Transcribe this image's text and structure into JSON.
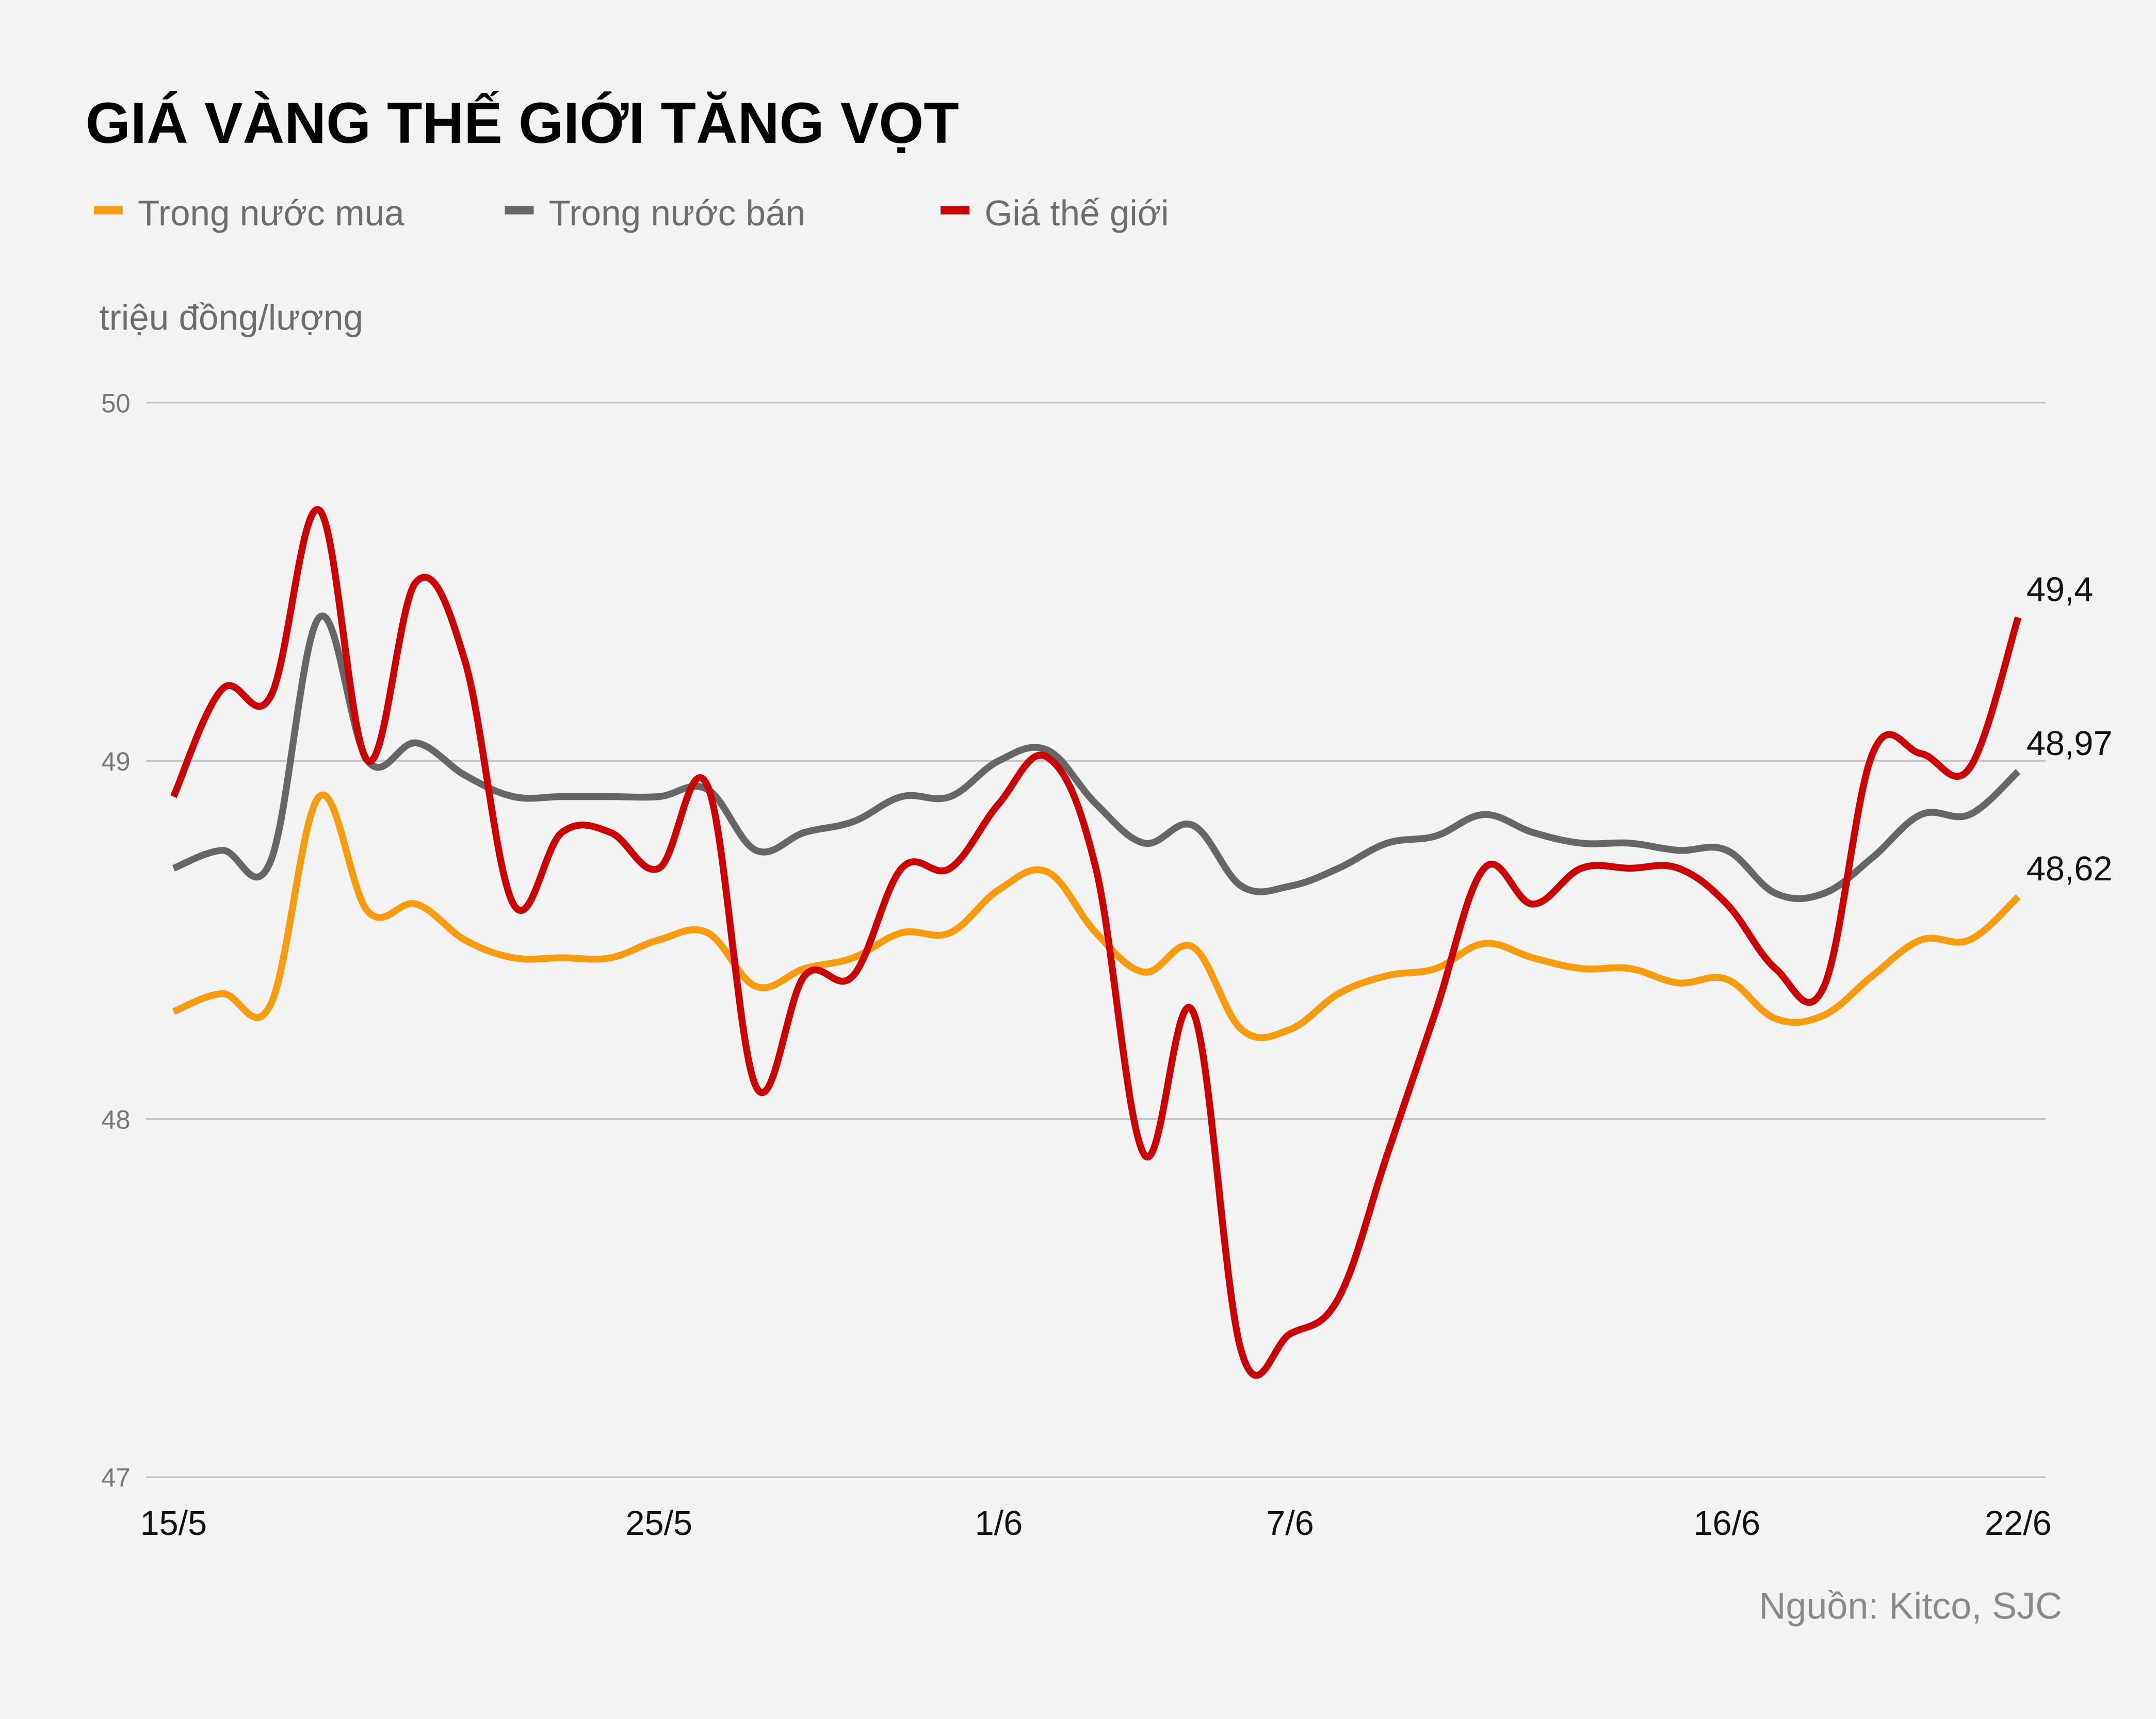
{
  "chart_data": {
    "type": "line",
    "title": "GIÁ VÀNG THẾ GIỚI TĂNG VỌT",
    "ylabel": "triệu đồng/lượng",
    "xlabel": "",
    "source": "Nguồn: Kitco, SJC",
    "ylim": [
      47,
      50
    ],
    "yticks": [
      "47",
      "48",
      "49",
      "50"
    ],
    "grid": true,
    "legend": "top-left",
    "x": [
      "15/5",
      "16/5",
      "17/5",
      "18/5",
      "19/5",
      "20/5",
      "21/5",
      "22/5",
      "23/5",
      "24/5",
      "25/5",
      "26/5",
      "27/5",
      "28/5",
      "29/5",
      "30/5",
      "31/5",
      "1/6",
      "2/6",
      "3/6",
      "4/6",
      "5/6",
      "6/6",
      "7/6",
      "8/6",
      "9/6",
      "10/6",
      "11/6",
      "12/6",
      "13/6",
      "14/6",
      "15/6",
      "16/6",
      "17/6",
      "18/6",
      "19/6",
      "20/6",
      "21/6",
      "22/6"
    ],
    "xticks": [
      "15/5",
      "25/5",
      "1/6",
      "7/6",
      "16/6",
      "22/6"
    ],
    "series": [
      {
        "name": "Trong nước mua",
        "color": "#f89c0e",
        "end_label": "48,62",
        "values": [
          48.3,
          48.35,
          48.32,
          48.9,
          48.58,
          48.6,
          48.5,
          48.45,
          48.45,
          48.45,
          48.5,
          48.52,
          48.37,
          48.42,
          48.45,
          48.52,
          48.52,
          48.64,
          48.69,
          48.52,
          48.41,
          48.48,
          48.25,
          48.25,
          48.35,
          48.4,
          48.42,
          48.49,
          48.45,
          48.42,
          48.42,
          48.38,
          48.39,
          48.28,
          48.29,
          48.4,
          48.5,
          48.5,
          48.62
        ]
      },
      {
        "name": "Trong nước bán",
        "color": "#666666",
        "end_label": "48,97",
        "values": [
          48.7,
          48.75,
          48.72,
          49.4,
          49.0,
          49.05,
          48.96,
          48.9,
          48.9,
          48.9,
          48.9,
          48.92,
          48.75,
          48.8,
          48.83,
          48.9,
          48.9,
          49.0,
          49.03,
          48.88,
          48.77,
          48.82,
          48.65,
          48.65,
          48.7,
          48.77,
          48.79,
          48.85,
          48.8,
          48.77,
          48.77,
          48.75,
          48.75,
          48.63,
          48.63,
          48.73,
          48.85,
          48.85,
          48.97
        ]
      },
      {
        "name": "Giá thế giới",
        "color": "#cc0000",
        "end_label": "49,4",
        "values": [
          48.9,
          49.2,
          49.18,
          49.7,
          49.0,
          49.5,
          49.28,
          48.6,
          48.8,
          48.8,
          48.7,
          48.93,
          48.09,
          48.4,
          48.4,
          48.7,
          48.7,
          48.88,
          49.01,
          48.7,
          47.9,
          48.3,
          47.35,
          47.4,
          47.5,
          47.9,
          48.3,
          48.7,
          48.6,
          48.7,
          48.7,
          48.7,
          48.6,
          48.42,
          48.37,
          49.02,
          49.02,
          48.98,
          49.4
        ]
      }
    ]
  }
}
